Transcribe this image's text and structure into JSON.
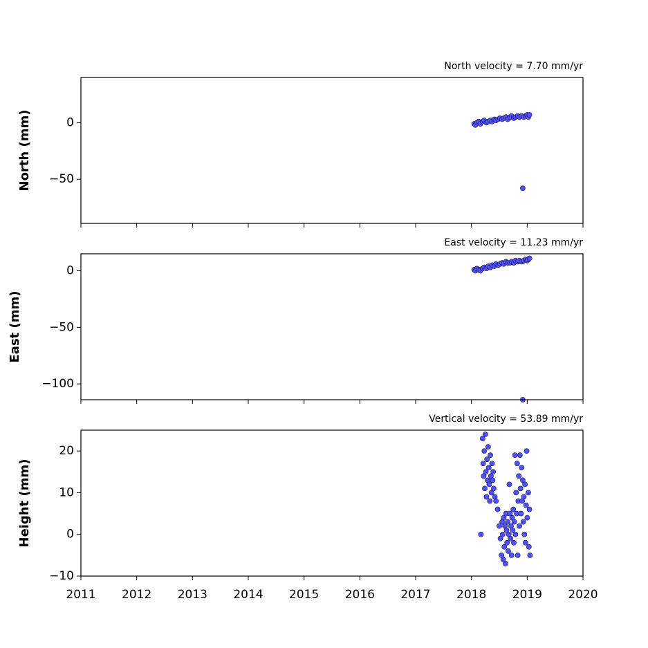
{
  "chart_data": [
    {
      "type": "scatter",
      "title": "North velocity = 7.70 mm/yr",
      "y_label": "North (mm)",
      "color": "#5050ff",
      "edge_color": "#1a1a40",
      "xlim": [
        2011,
        2020
      ],
      "xticks": [
        2011,
        2012,
        2013,
        2014,
        2015,
        2016,
        2017,
        2018,
        2019,
        2020
      ],
      "ylim": [
        -89,
        40
      ],
      "yticks": [
        {
          "value": -50,
          "label": "−50"
        },
        0
      ],
      "x": [
        2018.05,
        2018.07,
        2018.1,
        2018.13,
        2018.16,
        2018.2,
        2018.23,
        2018.27,
        2018.3,
        2018.34,
        2018.37,
        2018.41,
        2018.44,
        2018.48,
        2018.51,
        2018.55,
        2018.58,
        2018.62,
        2018.65,
        2018.69,
        2018.72,
        2018.76,
        2018.79,
        2018.83,
        2018.86,
        2018.9,
        2018.92,
        2018.94,
        2018.97,
        2019.0,
        2019.02,
        2019.04
      ],
      "values": [
        -1,
        -2,
        0,
        1,
        -1,
        1,
        2,
        0,
        1,
        2,
        1,
        3,
        2,
        3,
        4,
        3,
        4,
        5,
        3,
        5,
        6,
        4,
        5,
        6,
        5,
        6,
        -58,
        5,
        6,
        7,
        5,
        7
      ]
    },
    {
      "type": "scatter",
      "title": "East velocity = 11.23 mm/yr",
      "y_label": "East (mm)",
      "color": "#5050ff",
      "edge_color": "#1a1a40",
      "xlim": [
        2011,
        2020
      ],
      "xticks": [
        2011,
        2012,
        2013,
        2014,
        2015,
        2016,
        2017,
        2018,
        2019,
        2020
      ],
      "ylim": [
        -114,
        15
      ],
      "yticks": [
        {
          "value": -100,
          "label": "−100"
        },
        {
          "value": -50,
          "label": "−50"
        },
        0
      ],
      "x": [
        2018.05,
        2018.07,
        2018.1,
        2018.13,
        2018.16,
        2018.2,
        2018.23,
        2018.27,
        2018.3,
        2018.34,
        2018.37,
        2018.41,
        2018.44,
        2018.48,
        2018.51,
        2018.55,
        2018.58,
        2018.62,
        2018.65,
        2018.69,
        2018.72,
        2018.76,
        2018.79,
        2018.83,
        2018.86,
        2018.9,
        2018.92,
        2018.94,
        2018.97,
        2019.0,
        2019.02,
        2019.04
      ],
      "values": [
        1,
        0,
        2,
        1,
        0,
        2,
        3,
        2,
        4,
        3,
        5,
        4,
        6,
        5,
        6,
        7,
        6,
        8,
        7,
        7,
        8,
        7,
        9,
        8,
        9,
        8,
        -114,
        9,
        10,
        9,
        10,
        11
      ]
    },
    {
      "type": "scatter",
      "title": "Vertical velocity = 53.89 mm/yr",
      "y_label": "Height (mm)",
      "color": "#5050ff",
      "edge_color": "#1a1a40",
      "xlim": [
        2011,
        2020
      ],
      "xticks": [
        2011,
        2012,
        2013,
        2014,
        2015,
        2016,
        2017,
        2018,
        2019,
        2020
      ],
      "ylim": [
        -10,
        25
      ],
      "yticks": [
        {
          "value": -10,
          "label": "−10"
        },
        0,
        10,
        20
      ],
      "x": [
        2018.17,
        2018.2,
        2018.21,
        2018.22,
        2018.23,
        2018.24,
        2018.25,
        2018.26,
        2018.27,
        2018.28,
        2018.29,
        2018.3,
        2018.31,
        2018.32,
        2018.33,
        2018.34,
        2018.35,
        2018.36,
        2018.37,
        2018.38,
        2018.39,
        2018.4,
        2018.42,
        2018.44,
        2018.47,
        2018.5,
        2018.52,
        2018.54,
        2018.55,
        2018.56,
        2018.57,
        2018.58,
        2018.59,
        2018.6,
        2018.61,
        2018.62,
        2018.63,
        2018.64,
        2018.65,
        2018.66,
        2018.67,
        2018.68,
        2018.69,
        2018.7,
        2018.71,
        2018.72,
        2018.73,
        2018.74,
        2018.75,
        2018.76,
        2018.77,
        2018.78,
        2018.79,
        2018.8,
        2018.81,
        2018.82,
        2018.83,
        2018.84,
        2018.85,
        2018.86,
        2018.87,
        2018.88,
        2018.89,
        2018.9,
        2018.91,
        2018.92,
        2018.93,
        2018.94,
        2018.95,
        2018.96,
        2018.97,
        2018.98,
        2018.99,
        2019.0,
        2019.02,
        2019.03,
        2019.04,
        2019.05
      ],
      "values": [
        0,
        23,
        17,
        14,
        20,
        11,
        24,
        15,
        9,
        18,
        13,
        21,
        16,
        12,
        8,
        19,
        14,
        10,
        17,
        13,
        15,
        11,
        9,
        8,
        6,
        2,
        -1,
        -5,
        3,
        0,
        -6,
        4,
        -3,
        2,
        -7,
        5,
        1,
        -2,
        3,
        -4,
        0,
        12,
        5,
        -1,
        2,
        -5,
        4,
        1,
        6,
        -2,
        3,
        19,
        0,
        10,
        5,
        17,
        -5,
        8,
        14,
        2,
        19,
        11,
        5,
        16,
        8,
        13,
        3,
        9,
        0,
        12,
        -2,
        7,
        20,
        4,
        10,
        -3,
        6,
        -5
      ]
    }
  ]
}
